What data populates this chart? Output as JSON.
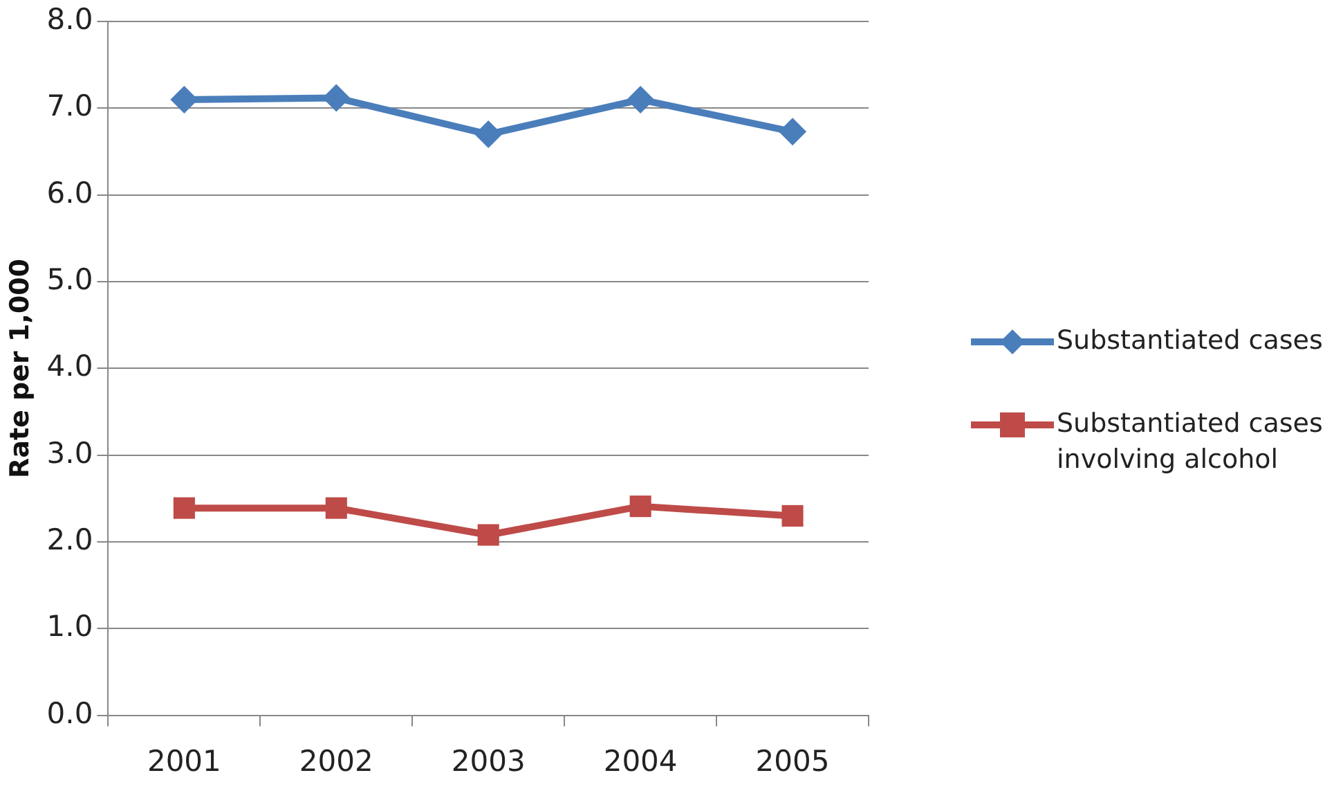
{
  "chart_data": {
    "type": "line",
    "ylabel": "Rate per 1,000",
    "categories": [
      "2001",
      "2002",
      "2003",
      "2004",
      "2005"
    ],
    "series": [
      {
        "name": "Substantiated cases",
        "color": "#4a7ebb",
        "marker": "diamond",
        "values": [
          7.1,
          7.12,
          6.7,
          7.1,
          6.73
        ]
      },
      {
        "name": "Substantiated cases involving alcohol",
        "color": "#be4b48",
        "marker": "square",
        "values": [
          2.39,
          2.39,
          2.08,
          2.41,
          2.3
        ]
      }
    ],
    "ylim": [
      0,
      8
    ],
    "yticks": [
      {
        "value": 0,
        "label": "0.0"
      },
      {
        "value": 1,
        "label": "1.0"
      },
      {
        "value": 2,
        "label": "2.0"
      },
      {
        "value": 3,
        "label": "3.0"
      },
      {
        "value": 4,
        "label": "4.0"
      },
      {
        "value": 5,
        "label": "5.0"
      },
      {
        "value": 6,
        "label": "6.0"
      },
      {
        "value": 7,
        "label": "7.0"
      },
      {
        "value": 8,
        "label": "8.0"
      }
    ],
    "grid": "y",
    "legend": "right",
    "line_style": "solid"
  }
}
